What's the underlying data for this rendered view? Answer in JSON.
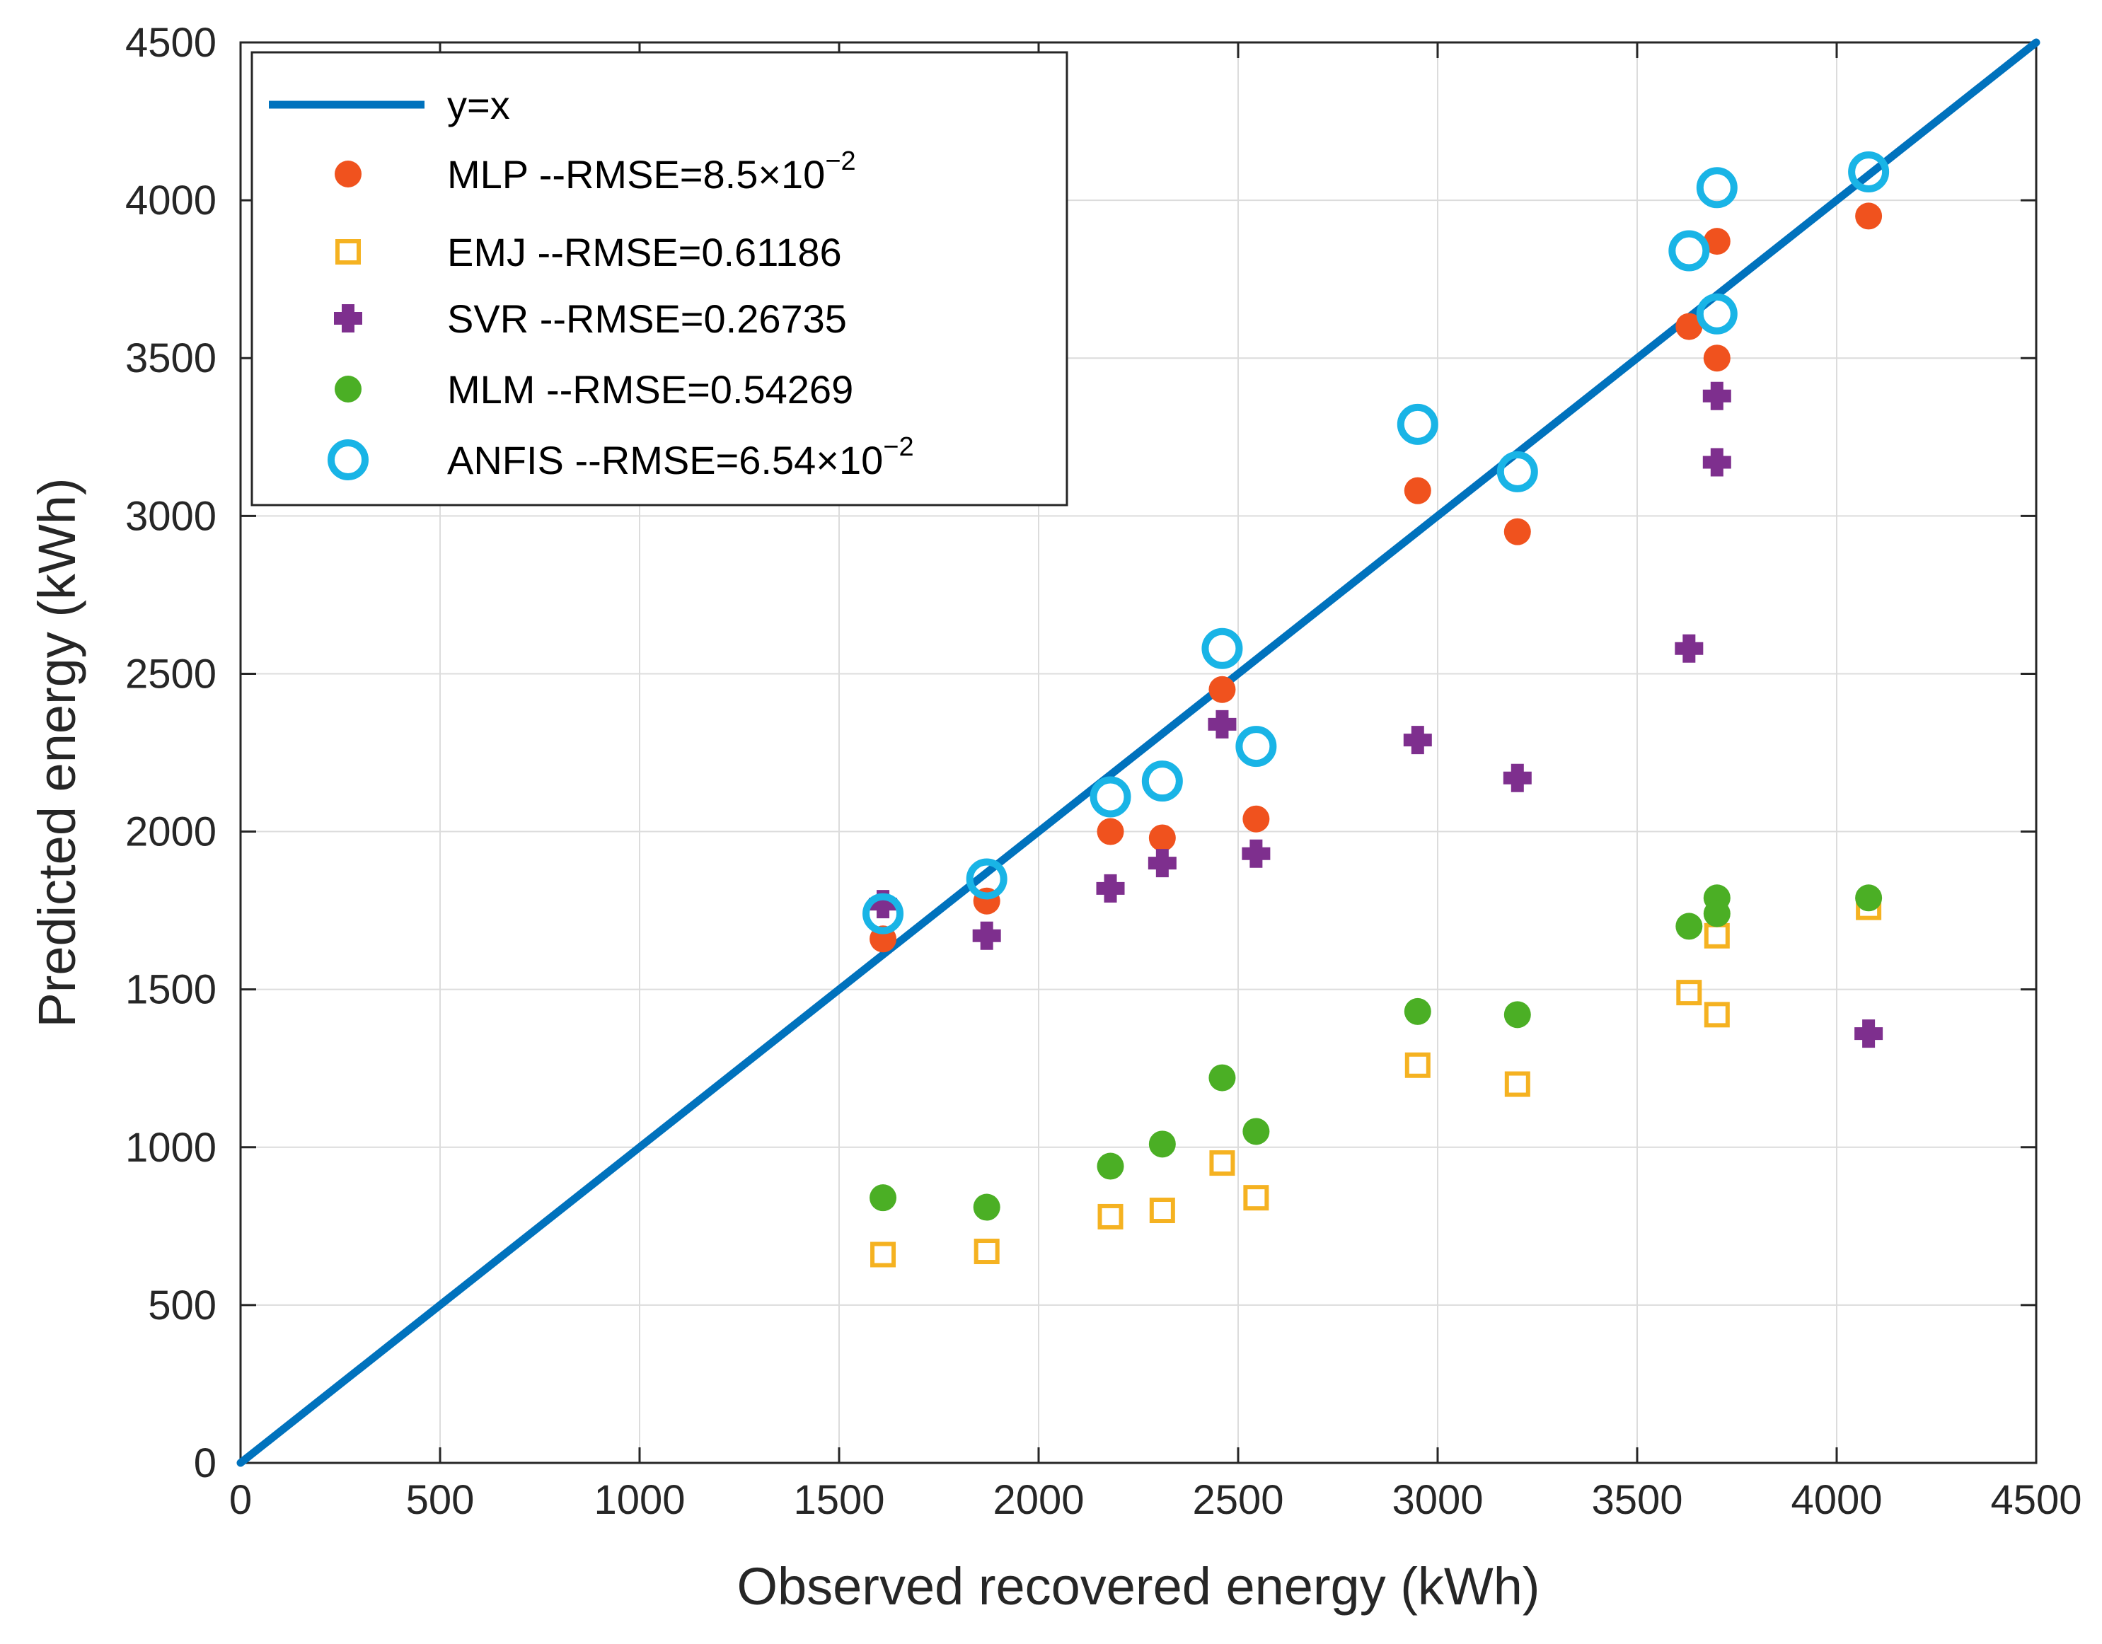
{
  "chart_data": {
    "type": "scatter",
    "title": "",
    "xlabel": "Observed recovered energy (kWh)",
    "ylabel": "Predicted energy (kWh)",
    "xlim": [
      0,
      4500
    ],
    "ylim": [
      0,
      4500
    ],
    "xticks": [
      "0",
      "500",
      "1000",
      "1500",
      "2000",
      "2500",
      "3000",
      "3500",
      "4000",
      "4500"
    ],
    "yticks": [
      "0",
      "500",
      "1000",
      "1500",
      "2000",
      "2500",
      "3000",
      "3500",
      "4000",
      "4500"
    ],
    "grid": true,
    "legend_position": "top-left",
    "reference_line": {
      "name": "y=x",
      "color": "#0072BD",
      "points": [
        [
          0,
          0
        ],
        [
          4500,
          4500
        ]
      ]
    },
    "series": [
      {
        "name": "MLP",
        "legend_label": "MLP --RMSE=8.5×10",
        "legend_exponent": "−2",
        "marker": "filled-circle",
        "color": "#F0521E",
        "x": [
          1610,
          1870,
          2180,
          2310,
          2460,
          2545,
          2950,
          3200,
          3630,
          3700,
          3700,
          4080
        ],
        "y": [
          1660,
          1780,
          2000,
          1980,
          2450,
          2040,
          3080,
          2950,
          3600,
          3870,
          3500,
          3950
        ]
      },
      {
        "name": "EMJ",
        "legend_label": "EMJ --RMSE=0.61186",
        "legend_exponent": "",
        "marker": "open-square",
        "color": "#F5B221",
        "x": [
          1610,
          1870,
          2180,
          2310,
          2460,
          2545,
          2950,
          3200,
          3630,
          3700,
          3700,
          4080
        ],
        "y": [
          660,
          670,
          780,
          800,
          950,
          840,
          1260,
          1200,
          1490,
          1670,
          1420,
          1760
        ]
      },
      {
        "name": "SVR",
        "legend_label": "SVR --RMSE=0.26735",
        "legend_exponent": "",
        "marker": "plus",
        "color": "#7E2F8E",
        "x": [
          1610,
          1870,
          2180,
          2310,
          2460,
          2545,
          2950,
          3200,
          3630,
          3700,
          3700,
          4080
        ],
        "y": [
          1770,
          1670,
          1820,
          1900,
          2340,
          1930,
          2290,
          2170,
          2580,
          3380,
          3170,
          1360
        ]
      },
      {
        "name": "MLM",
        "legend_label": "MLM --RMSE=0.54269",
        "legend_exponent": "",
        "marker": "filled-circle",
        "color": "#4BAF25",
        "x": [
          1610,
          1870,
          2180,
          2310,
          2460,
          2545,
          2950,
          3200,
          3630,
          3700,
          3700,
          4080
        ],
        "y": [
          840,
          810,
          940,
          1010,
          1220,
          1050,
          1430,
          1420,
          1700,
          1790,
          1740,
          1790
        ]
      },
      {
        "name": "ANFIS",
        "legend_label": "ANFIS --RMSE=6.54×10",
        "legend_exponent": "−2",
        "marker": "open-circle",
        "color": "#19B4E6",
        "x": [
          1610,
          1870,
          2180,
          2310,
          2460,
          2545,
          2950,
          3200,
          3630,
          3700,
          3700,
          4080
        ],
        "y": [
          1740,
          1850,
          2110,
          2160,
          2580,
          2270,
          3290,
          3140,
          3840,
          4040,
          3640,
          4090
        ]
      }
    ]
  }
}
